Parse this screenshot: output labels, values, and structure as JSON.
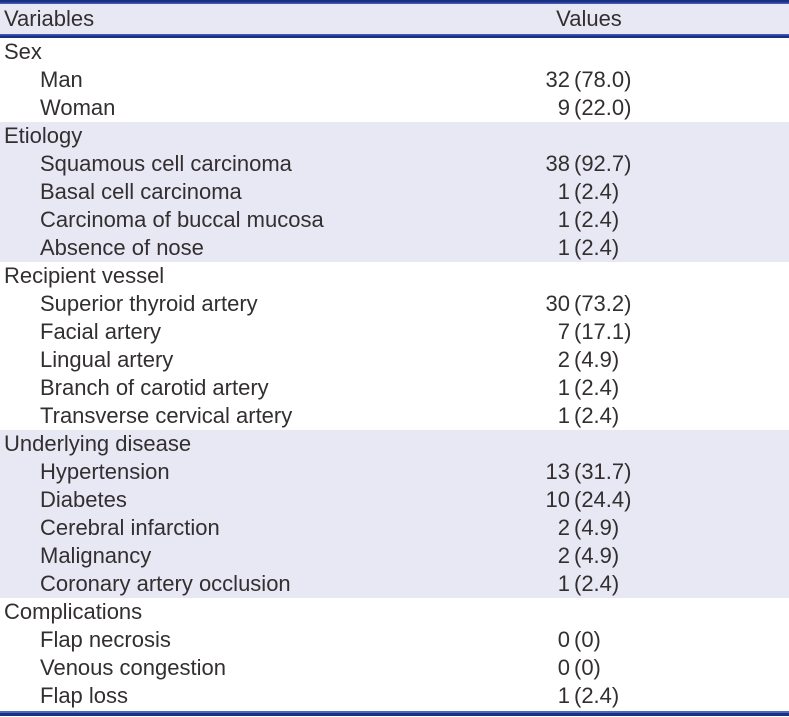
{
  "table": {
    "header": {
      "variables": "Variables",
      "values": "Values"
    },
    "sections": [
      {
        "label": "Sex",
        "shaded": false,
        "rows": [
          {
            "label": "Man",
            "count": "32",
            "pct": "(78.0)"
          },
          {
            "label": "Woman",
            "count": "9",
            "pct": "(22.0)"
          }
        ]
      },
      {
        "label": "Etiology",
        "shaded": true,
        "rows": [
          {
            "label": "Squamous cell carcinoma",
            "count": "38",
            "pct": "(92.7)"
          },
          {
            "label": "Basal cell carcinoma",
            "count": "1",
            "pct": "(2.4)"
          },
          {
            "label": "Carcinoma of buccal mucosa",
            "count": "1",
            "pct": "(2.4)"
          },
          {
            "label": "Absence of nose",
            "count": "1",
            "pct": "(2.4)"
          }
        ]
      },
      {
        "label": "Recipient vessel",
        "shaded": false,
        "rows": [
          {
            "label": "Superior thyroid artery",
            "count": "30",
            "pct": "(73.2)"
          },
          {
            "label": "Facial artery",
            "count": "7",
            "pct": "(17.1)"
          },
          {
            "label": "Lingual artery",
            "count": "2",
            "pct": "(4.9)"
          },
          {
            "label": "Branch of carotid artery",
            "count": "1",
            "pct": "(2.4)"
          },
          {
            "label": "Transverse cervical artery",
            "count": "1",
            "pct": "(2.4)"
          }
        ]
      },
      {
        "label": "Underlying disease",
        "shaded": true,
        "rows": [
          {
            "label": "Hypertension",
            "count": "13",
            "pct": "(31.7)"
          },
          {
            "label": "Diabetes",
            "count": "10",
            "pct": "(24.4)"
          },
          {
            "label": "Cerebral infarction",
            "count": "2",
            "pct": "(4.9)"
          },
          {
            "label": "Malignancy",
            "count": "2",
            "pct": "(4.9)"
          },
          {
            "label": "Coronary artery occlusion",
            "count": "1",
            "pct": "(2.4)"
          }
        ]
      },
      {
        "label": "Complications",
        "shaded": false,
        "rows": [
          {
            "label": "Flap necrosis",
            "count": "0",
            "pct": "(0)"
          },
          {
            "label": "Venous congestion",
            "count": "0",
            "pct": "(0)"
          },
          {
            "label": "Flap loss",
            "count": "1",
            "pct": "(2.4)"
          }
        ]
      }
    ]
  },
  "colors": {
    "shade": "#e8e8f4",
    "rule_dark": "#1b2f80",
    "rule_light": "#4059b8",
    "text": "#332f30"
  },
  "chart_data": {
    "type": "table",
    "title": "",
    "columns": [
      "Variables",
      "Values"
    ],
    "rows": [
      [
        "Sex",
        ""
      ],
      [
        "Man",
        "32 (78.0)"
      ],
      [
        "Woman",
        "9 (22.0)"
      ],
      [
        "Etiology",
        ""
      ],
      [
        "Squamous cell carcinoma",
        "38 (92.7)"
      ],
      [
        "Basal cell carcinoma",
        "1 (2.4)"
      ],
      [
        "Carcinoma of buccal mucosa",
        "1 (2.4)"
      ],
      [
        "Absence of nose",
        "1 (2.4)"
      ],
      [
        "Recipient vessel",
        ""
      ],
      [
        "Superior thyroid artery",
        "30 (73.2)"
      ],
      [
        "Facial artery",
        "7 (17.1)"
      ],
      [
        "Lingual artery",
        "2 (4.9)"
      ],
      [
        "Branch of carotid artery",
        "1 (2.4)"
      ],
      [
        "Transverse cervical artery",
        "1 (2.4)"
      ],
      [
        "Underlying disease",
        ""
      ],
      [
        "Hypertension",
        "13 (31.7)"
      ],
      [
        "Diabetes",
        "10 (24.4)"
      ],
      [
        "Cerebral infarction",
        "2 (4.9)"
      ],
      [
        "Malignancy",
        "2 (4.9)"
      ],
      [
        "Coronary artery occlusion",
        "1 (2.4)"
      ],
      [
        "Complications",
        ""
      ],
      [
        "Flap necrosis",
        "0 (0)"
      ],
      [
        "Venous congestion",
        "0 (0)"
      ],
      [
        "Flap loss",
        "1 (2.4)"
      ]
    ]
  }
}
